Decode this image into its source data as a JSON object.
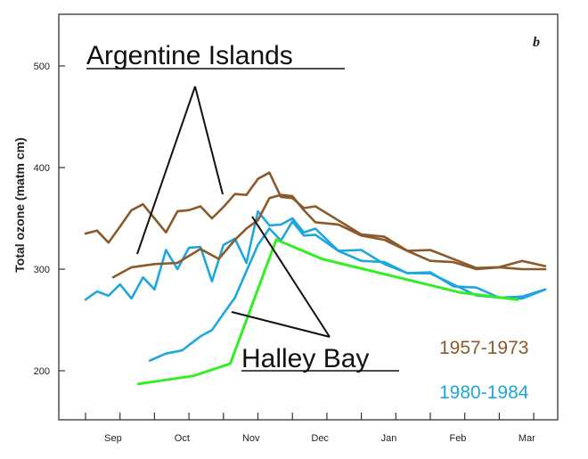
{
  "chart_data": {
    "type": "line",
    "panel_letter": "b",
    "ylabel": "Total ozone (matm cm)",
    "ylim": [
      160,
      550
    ],
    "yticks": [
      200,
      300,
      400,
      500
    ],
    "months": [
      "Sep",
      "Oct",
      "Nov",
      "Dec",
      "Jan",
      "Feb",
      "Mar"
    ],
    "annotations": {
      "argentine": "Argentine Islands",
      "halley": "Halley Bay"
    },
    "legend": [
      {
        "label": "1957-1973",
        "color": "#8b5a2b"
      },
      {
        "label": "1980-1984",
        "color": "#1ea7dd"
      }
    ],
    "series": [
      {
        "name": "1957-1973",
        "color": "#8b5a2b",
        "x": [
          0,
          5,
          10,
          15,
          20,
          25,
          30,
          35,
          40,
          45,
          50,
          55,
          60,
          65,
          70,
          75,
          80,
          85,
          90,
          95,
          100,
          110,
          120,
          130,
          140,
          150,
          160,
          170,
          180,
          190,
          200
        ],
        "y": [
          335,
          338,
          330,
          340,
          360,
          360,
          350,
          340,
          355,
          360,
          358,
          350,
          365,
          372,
          375,
          385,
          395,
          375,
          368,
          362,
          358,
          348,
          338,
          330,
          320,
          315,
          310,
          305,
          300,
          310,
          303
        ]
      },
      {
        "name": "1957-1973",
        "color": "#8b5a2b",
        "x": [
          12,
          20,
          30,
          40,
          50,
          58,
          65,
          70,
          75,
          80,
          85,
          90,
          95,
          100,
          110,
          120,
          130,
          140,
          150,
          160,
          170,
          180,
          190,
          200
        ],
        "y": [
          292,
          298,
          305,
          310,
          318,
          312,
          325,
          340,
          352,
          368,
          375,
          368,
          358,
          350,
          342,
          335,
          325,
          318,
          312,
          305,
          302,
          298,
          300,
          300
        ]
      },
      {
        "name": "1980-1984",
        "color": "#1ea7dd",
        "x": [
          0,
          5,
          10,
          15,
          20,
          25,
          30,
          35,
          40,
          45,
          50,
          55,
          60,
          65,
          70,
          75,
          80,
          85,
          90,
          95,
          100,
          110,
          120,
          130,
          140,
          150,
          160,
          170,
          180,
          190,
          200
        ],
        "y": [
          270,
          280,
          270,
          285,
          275,
          290,
          282,
          315,
          300,
          325,
          320,
          290,
          320,
          330,
          310,
          355,
          345,
          340,
          350,
          340,
          338,
          320,
          315,
          305,
          300,
          295,
          285,
          278,
          272,
          275,
          280
        ]
      },
      {
        "name": "1980-1984",
        "color": "#1ea7dd",
        "x": [
          28,
          35,
          42,
          50,
          55,
          60,
          65,
          70,
          75,
          80,
          85,
          90,
          95,
          100,
          110,
          120,
          130,
          140,
          150,
          160,
          170,
          180,
          190,
          200
        ],
        "y": [
          210,
          215,
          222,
          230,
          240,
          260,
          270,
          300,
          320,
          340,
          332,
          345,
          335,
          330,
          318,
          312,
          305,
          298,
          292,
          285,
          278,
          270,
          275,
          280
        ]
      },
      {
        "name": "green",
        "color": "#33ee22",
        "x": [
          23,
          47,
          63,
          83,
          103,
          163,
          188
        ],
        "y": [
          187,
          195,
          207,
          329,
          310,
          277,
          270
        ]
      }
    ]
  }
}
